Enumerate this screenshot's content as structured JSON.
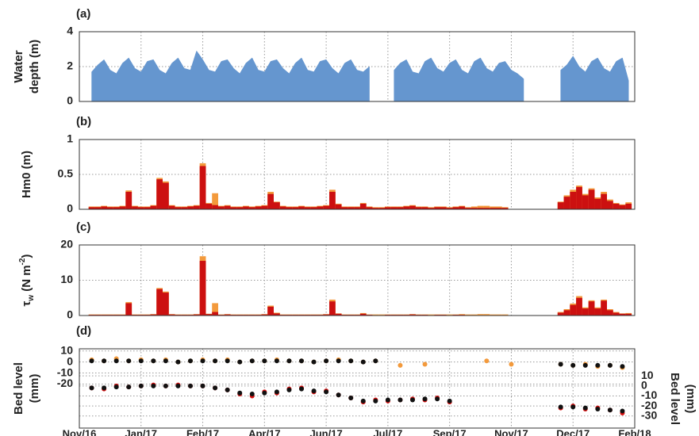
{
  "chart_data": [
    {
      "type": "area",
      "label": "(a)",
      "ylabel": [
        "Water",
        "depth (m)"
      ],
      "color": "#6596cf",
      "xlim": [
        0,
        450
      ],
      "xticks": [
        0,
        50,
        100,
        150,
        200,
        250,
        300,
        350,
        400,
        450
      ],
      "ylim": [
        0,
        4
      ],
      "yticks": [
        0,
        2,
        4
      ],
      "grid": true,
      "x": [
        10,
        15,
        20,
        25,
        30,
        35,
        40,
        45,
        50,
        55,
        60,
        65,
        70,
        75,
        80,
        85,
        90,
        95,
        100,
        105,
        110,
        115,
        120,
        125,
        130,
        135,
        140,
        145,
        150,
        155,
        160,
        165,
        170,
        175,
        180,
        185,
        190,
        195,
        200,
        205,
        210,
        215,
        220,
        225,
        230,
        235,
        240,
        245,
        250,
        255,
        260,
        265,
        270,
        275,
        280,
        285,
        290,
        295,
        300,
        305,
        310,
        315,
        320,
        325,
        330,
        335,
        340,
        345,
        350,
        355,
        360,
        365,
        370,
        375,
        380,
        385,
        390,
        395,
        400,
        405,
        410,
        415,
        420,
        425,
        430,
        435,
        440,
        445
      ],
      "values": [
        1.7,
        2.1,
        2.4,
        1.8,
        1.6,
        2.2,
        2.5,
        1.9,
        1.7,
        2.3,
        2.4,
        1.8,
        1.6,
        2.2,
        2.5,
        1.9,
        1.8,
        2.9,
        2.4,
        1.8,
        1.7,
        2.3,
        2.4,
        1.9,
        1.6,
        2.2,
        2.5,
        1.8,
        1.7,
        2.3,
        2.4,
        1.9,
        1.6,
        2.2,
        2.5,
        1.8,
        1.7,
        2.3,
        2.4,
        1.9,
        1.6,
        2.2,
        2.4,
        1.8,
        1.7,
        2.0,
        null,
        null,
        null,
        1.8,
        2.2,
        2.4,
        1.7,
        1.6,
        2.3,
        2.5,
        1.9,
        1.7,
        2.2,
        2.4,
        1.8,
        1.6,
        2.3,
        2.5,
        1.9,
        1.7,
        2.2,
        2.3,
        1.8,
        1.6,
        1.3,
        null,
        null,
        null,
        null,
        null,
        1.8,
        2.1,
        2.6,
        2.0,
        1.7,
        2.3,
        2.5,
        1.9,
        1.7,
        2.3,
        2.5,
        1.2
      ]
    },
    {
      "type": "bar",
      "label": "(b)",
      "ylabel": [
        "Hm0 (m)"
      ],
      "xlim": [
        0,
        450
      ],
      "xticks": [
        0,
        50,
        100,
        150,
        200,
        250,
        300,
        350,
        400,
        450
      ],
      "ylim": [
        0,
        1
      ],
      "yticks": [
        0,
        0.5,
        1
      ],
      "grid": true,
      "x": [
        10,
        15,
        20,
        25,
        30,
        35,
        40,
        45,
        50,
        55,
        60,
        65,
        70,
        75,
        80,
        85,
        90,
        95,
        100,
        105,
        110,
        115,
        120,
        125,
        130,
        135,
        140,
        145,
        150,
        155,
        160,
        165,
        170,
        175,
        180,
        185,
        190,
        195,
        200,
        205,
        210,
        215,
        220,
        225,
        230,
        235,
        240,
        245,
        250,
        255,
        260,
        265,
        270,
        275,
        280,
        285,
        290,
        295,
        300,
        305,
        310,
        315,
        320,
        325,
        330,
        335,
        340,
        345,
        350,
        355,
        360,
        365,
        370,
        375,
        380,
        385,
        390,
        395,
        400,
        405,
        410,
        415,
        420,
        425,
        430,
        435,
        440,
        445
      ],
      "series": [
        {
          "color": "#f39a3c",
          "values": [
            0.04,
            0.04,
            0.05,
            0.04,
            0.04,
            0.05,
            0.27,
            0.05,
            0.04,
            0.04,
            0.06,
            0.45,
            0.4,
            0.06,
            0.04,
            0.04,
            0.05,
            0.06,
            0.66,
            0.09,
            0.23,
            0.05,
            0.06,
            0.04,
            0.04,
            0.05,
            0.04,
            0.05,
            0.06,
            0.25,
            0.11,
            0.05,
            0.04,
            0.04,
            0.05,
            0.04,
            0.04,
            0.05,
            0.06,
            0.28,
            0.08,
            0.04,
            0.04,
            0.04,
            0.09,
            0.04,
            0.03,
            0.03,
            0.04,
            0.04,
            0.04,
            0.05,
            0.06,
            0.04,
            0.04,
            0.03,
            0.04,
            0.04,
            0.03,
            0.04,
            0.05,
            0.03,
            0.04,
            0.05,
            0.05,
            0.04,
            0.04,
            0.03,
            null,
            null,
            null,
            null,
            null,
            null,
            null,
            null,
            0.11,
            0.2,
            0.28,
            0.34,
            0.22,
            0.3,
            0.17,
            0.25,
            0.14,
            0.09,
            0.07,
            0.1
          ]
        },
        {
          "color": "#cc1010",
          "values": [
            0.03,
            0.03,
            0.04,
            0.03,
            0.03,
            0.04,
            0.25,
            0.04,
            0.03,
            0.03,
            0.05,
            0.43,
            0.38,
            0.05,
            0.03,
            0.03,
            0.04,
            0.05,
            0.62,
            0.08,
            0.06,
            0.04,
            0.05,
            0.03,
            0.03,
            0.04,
            0.03,
            0.04,
            0.05,
            0.22,
            0.1,
            0.04,
            0.03,
            0.03,
            0.04,
            0.03,
            0.03,
            0.04,
            0.05,
            0.25,
            0.07,
            0.03,
            0.03,
            0.03,
            0.08,
            0.03,
            0.02,
            0.02,
            0.03,
            0.03,
            0.03,
            0.04,
            0.05,
            0.03,
            0.03,
            0.02,
            0.03,
            0.03,
            0.02,
            0.03,
            0.04,
            0.02,
            0.02,
            0.02,
            0.02,
            0.02,
            0.02,
            0.02,
            null,
            null,
            null,
            null,
            null,
            null,
            null,
            null,
            0.1,
            0.18,
            0.25,
            0.32,
            0.2,
            0.28,
            0.15,
            0.22,
            0.12,
            0.08,
            0.06,
            0.08
          ]
        }
      ]
    },
    {
      "type": "bar",
      "label": "(c)",
      "ylabel": [
        [
          {
            "text": "τ"
          },
          {
            "text": "w",
            "shift": "sub"
          },
          {
            "text": " (N m"
          },
          {
            "text": "-2",
            "shift": "super"
          },
          {
            "text": ")"
          }
        ]
      ],
      "xlim": [
        0,
        450
      ],
      "xticks": [
        0,
        50,
        100,
        150,
        200,
        250,
        300,
        350,
        400,
        450
      ],
      "ylim": [
        0,
        20
      ],
      "yticks": [
        0,
        10,
        20
      ],
      "grid": true,
      "x": [
        10,
        15,
        20,
        25,
        30,
        35,
        40,
        45,
        50,
        55,
        60,
        65,
        70,
        75,
        80,
        85,
        90,
        95,
        100,
        105,
        110,
        115,
        120,
        125,
        130,
        135,
        140,
        145,
        150,
        155,
        160,
        165,
        170,
        175,
        180,
        185,
        190,
        195,
        200,
        205,
        210,
        215,
        220,
        225,
        230,
        235,
        240,
        245,
        250,
        255,
        260,
        265,
        270,
        275,
        280,
        285,
        290,
        295,
        300,
        305,
        310,
        315,
        320,
        325,
        330,
        335,
        340,
        345,
        350,
        355,
        360,
        365,
        370,
        375,
        380,
        385,
        390,
        395,
        400,
        405,
        410,
        415,
        420,
        425,
        430,
        435,
        440,
        445
      ],
      "series": [
        {
          "color": "#f39a3c",
          "values": [
            0.3,
            0.3,
            0.3,
            0.3,
            0.3,
            0.3,
            3.8,
            0.3,
            0.3,
            0.3,
            0.4,
            7.8,
            6.8,
            0.4,
            0.3,
            0.3,
            0.3,
            0.4,
            16.8,
            0.5,
            3.5,
            0.3,
            0.4,
            0.3,
            0.3,
            0.3,
            0.3,
            0.3,
            0.4,
            2.8,
            0.8,
            0.3,
            0.3,
            0.3,
            0.3,
            0.3,
            0.3,
            0.3,
            0.4,
            4.5,
            0.6,
            0.3,
            0.3,
            0.3,
            0.7,
            0.3,
            0.3,
            0.3,
            0.3,
            0.3,
            0.3,
            0.3,
            0.4,
            0.3,
            0.3,
            0.3,
            0.3,
            0.3,
            0.3,
            0.3,
            0.4,
            0.3,
            0.3,
            0.4,
            0.4,
            0.3,
            0.3,
            0.3,
            null,
            null,
            null,
            null,
            null,
            null,
            null,
            null,
            1.0,
            1.8,
            3.4,
            5.5,
            2.3,
            4.3,
            2.3,
            4.5,
            1.8,
            1.0,
            0.6,
            0.7
          ]
        },
        {
          "color": "#cc1010",
          "values": [
            0.2,
            0.2,
            0.2,
            0.2,
            0.2,
            0.2,
            3.5,
            0.2,
            0.2,
            0.2,
            0.3,
            7.5,
            6.5,
            0.3,
            0.2,
            0.2,
            0.2,
            0.3,
            15.5,
            0.4,
            1.0,
            0.2,
            0.3,
            0.2,
            0.2,
            0.2,
            0.2,
            0.2,
            0.3,
            2.5,
            0.6,
            0.2,
            0.2,
            0.2,
            0.2,
            0.2,
            0.2,
            0.2,
            0.3,
            4.0,
            0.5,
            0.2,
            0.2,
            0.2,
            0.5,
            0.2,
            0.1,
            0.1,
            0.2,
            0.2,
            0.2,
            0.2,
            0.3,
            0.2,
            0.2,
            0.1,
            0.2,
            0.2,
            0.1,
            0.2,
            0.2,
            0.1,
            0.1,
            0.1,
            0.1,
            0.1,
            0.1,
            0.1,
            null,
            null,
            null,
            null,
            null,
            null,
            null,
            null,
            0.8,
            1.5,
            3.0,
            5.0,
            2.0,
            4.0,
            2.0,
            4.2,
            1.5,
            0.8,
            0.5,
            0.5
          ]
        }
      ]
    },
    {
      "type": "scatter",
      "label": "(d)",
      "ylabel": [
        "Bed level",
        "(mm)"
      ],
      "y2label": [
        "Bed level",
        "(mm)"
      ],
      "xlim": [
        0,
        450
      ],
      "xticks": [
        {
          "value": 0,
          "label": "Nov/16"
        },
        {
          "value": 50,
          "label": "Jan/17"
        },
        {
          "value": 100,
          "label": "Feb/17"
        },
        {
          "value": 150,
          "label": "Apr/17"
        },
        {
          "value": 200,
          "label": "Jun/17"
        },
        {
          "value": 250,
          "label": "Jul/17"
        },
        {
          "value": 300,
          "label": "Sep/17"
        },
        {
          "value": 350,
          "label": "Nov/17"
        },
        {
          "value": 400,
          "label": "Dec/17"
        },
        {
          "value": 450,
          "label": "Feb/18"
        }
      ],
      "ylim": [
        -60,
        12
      ],
      "yticks": [
        10,
        0,
        -10,
        -20
      ],
      "y2lim": [
        -42,
        37
      ],
      "y2ticks": [
        10,
        0,
        -10,
        -20,
        -30
      ],
      "grid": true,
      "x": [
        10,
        20,
        30,
        40,
        50,
        60,
        70,
        80,
        90,
        100,
        110,
        120,
        130,
        140,
        150,
        160,
        170,
        180,
        190,
        200,
        210,
        220,
        230,
        240,
        250,
        260,
        270,
        280,
        290,
        300,
        310,
        320,
        330,
        340,
        350,
        360,
        370,
        380,
        390,
        400,
        410,
        420,
        430,
        440
      ],
      "series": [
        {
          "color": "#f39a3c",
          "values": [
            2,
            1,
            3,
            1,
            2,
            1,
            2,
            0,
            1,
            2,
            1,
            2,
            0,
            1,
            1,
            2,
            1,
            1,
            0,
            1,
            2,
            1,
            0,
            1,
            null,
            -3,
            null,
            -2,
            null,
            null,
            null,
            null,
            1,
            null,
            -2,
            null,
            null,
            null,
            -2,
            -3,
            -2,
            -4,
            -3,
            -5
          ]
        },
        {
          "color": "#111111",
          "values": [
            1,
            1,
            1,
            1,
            1,
            1,
            1,
            0,
            1,
            1,
            1,
            1,
            0,
            1,
            1,
            1,
            1,
            1,
            0,
            1,
            1,
            1,
            0,
            1,
            null,
            null,
            null,
            null,
            null,
            null,
            null,
            null,
            null,
            null,
            null,
            null,
            null,
            null,
            -2,
            -3,
            -3,
            -3,
            -3,
            -4
          ]
        },
        {
          "color": "#dd1111",
          "axis": "y2",
          "values": [
            -2,
            -3,
            0,
            -1,
            0,
            1,
            0,
            1,
            0,
            0,
            -2,
            -4,
            -8,
            -10,
            -6,
            -7,
            -3,
            -2,
            -6,
            -5,
            -9,
            -12,
            -16,
            -14,
            -15,
            -14,
            -13,
            -14,
            -12,
            -16,
            null,
            null,
            null,
            null,
            null,
            null,
            null,
            null,
            -22,
            -20,
            -23,
            -22,
            -24,
            -27
          ]
        },
        {
          "color": "#111111",
          "axis": "y2",
          "values": [
            -2,
            -2,
            -1,
            -1,
            0,
            0,
            0,
            0,
            0,
            0,
            -2,
            -4,
            -7,
            -8,
            -7,
            -6,
            -4,
            -3,
            -5,
            -6,
            -9,
            -12,
            -15,
            -15,
            -14,
            -14,
            -14,
            -13,
            -13,
            -15,
            null,
            null,
            null,
            null,
            null,
            null,
            null,
            null,
            -21,
            -21,
            -22,
            -23,
            -24,
            -25
          ]
        }
      ]
    }
  ]
}
